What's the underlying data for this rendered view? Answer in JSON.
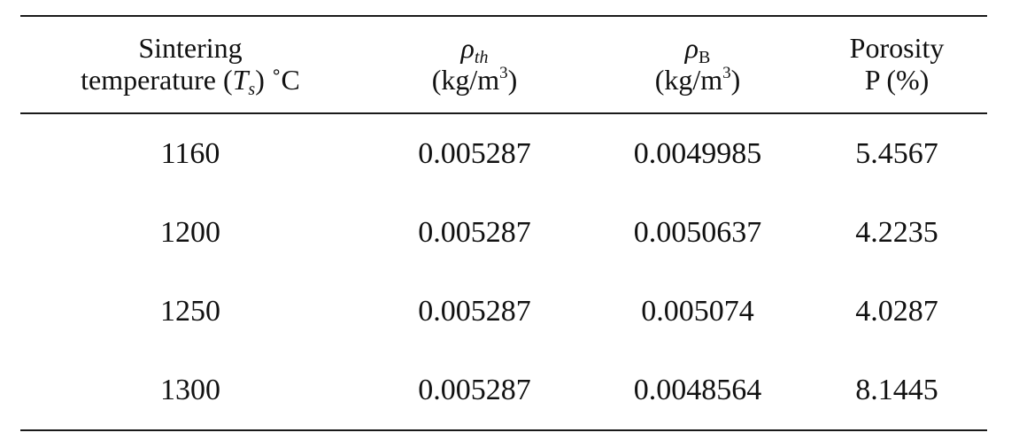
{
  "table": {
    "header": {
      "col1": {
        "line1": "Sintering",
        "line2_pre": "temperature (",
        "line2_sym": "T",
        "line2_sub": "s",
        "line2_post": ") ˚C"
      },
      "col2": {
        "sym": "ρ",
        "sub": "th",
        "unit_pre": "(kg/m",
        "unit_sup": "3",
        "unit_post": ")"
      },
      "col3": {
        "sym": "ρ",
        "sub": "B",
        "unit_pre": "(kg/m",
        "unit_sup": "3",
        "unit_post": ")"
      },
      "col4": {
        "line1": "Porosity",
        "line2": "P (%)"
      }
    },
    "rows": [
      {
        "temp": "1160",
        "rho_th": "0.005287",
        "rho_b": "0.0049985",
        "porosity": "5.4567"
      },
      {
        "temp": "1200",
        "rho_th": "0.005287",
        "rho_b": "0.0050637",
        "porosity": "4.2235"
      },
      {
        "temp": "1250",
        "rho_th": "0.005287",
        "rho_b": "0.005074",
        "porosity": "4.0287"
      },
      {
        "temp": "1300",
        "rho_th": "0.005287",
        "rho_b": "0.0048564",
        "porosity": "8.1445"
      }
    ]
  }
}
